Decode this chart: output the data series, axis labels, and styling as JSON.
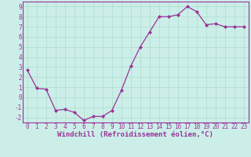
{
  "x": [
    0,
    1,
    2,
    3,
    4,
    5,
    6,
    7,
    8,
    9,
    10,
    11,
    12,
    13,
    14,
    15,
    16,
    17,
    18,
    19,
    20,
    21,
    22,
    23
  ],
  "y": [
    2.7,
    0.9,
    0.8,
    -1.3,
    -1.2,
    -1.5,
    -2.3,
    -1.9,
    -1.9,
    -1.3,
    0.7,
    3.1,
    5.0,
    6.5,
    8.0,
    8.0,
    8.2,
    9.0,
    8.5,
    7.2,
    7.3,
    7.0,
    7.0,
    7.0
  ],
  "line_color": "#993399",
  "marker": "D",
  "marker_size": 2,
  "bg_color": "#cceee8",
  "grid_color": "#aaddcc",
  "xlabel": "Windchill (Refroidissement éolien,°C)",
  "ylim": [
    -2.5,
    9.5
  ],
  "xlim": [
    -0.5,
    23.5
  ],
  "yticks": [
    -2,
    -1,
    0,
    1,
    2,
    3,
    4,
    5,
    6,
    7,
    8,
    9
  ],
  "xticks": [
    0,
    1,
    2,
    3,
    4,
    5,
    6,
    7,
    8,
    9,
    10,
    11,
    12,
    13,
    14,
    15,
    16,
    17,
    18,
    19,
    20,
    21,
    22,
    23
  ],
  "tick_fontsize": 5.5,
  "xlabel_fontsize": 6.5,
  "linewidth": 0.9
}
